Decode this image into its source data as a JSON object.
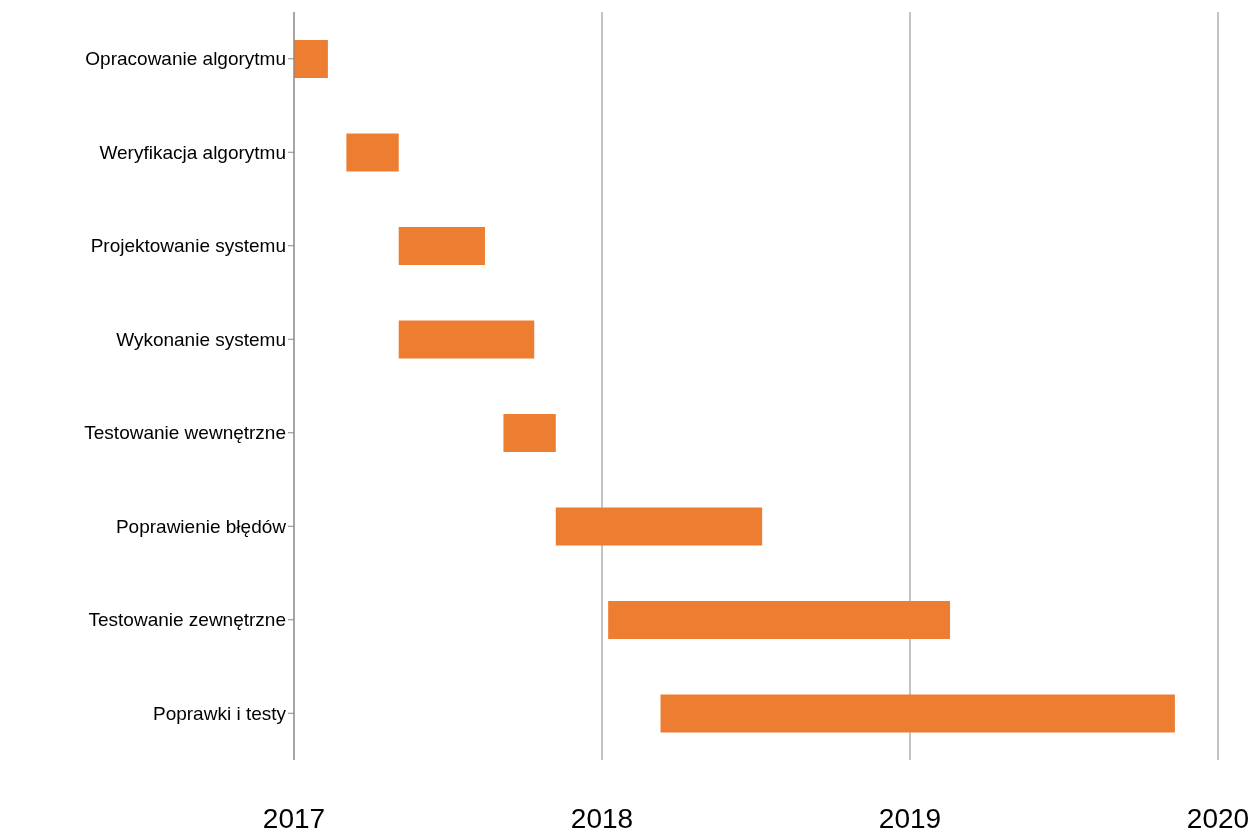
{
  "chart_data": {
    "type": "bar",
    "orientation": "horizontal",
    "categories": [
      "Opracowanie algorytmu",
      "Weryfikacja algorytmu",
      "Projektowanie systemu",
      "Wykonanie systemu",
      "Testowanie wewnętrzne",
      "Poprawienie błędów",
      "Testowanie zewnętrzne",
      "Poprawki i testy"
    ],
    "base": [
      2017,
      2017.17,
      2017.34,
      2017.34,
      2017.68,
      2017.85,
      2018.02,
      2018.19
    ],
    "values": [
      0.11,
      0.17,
      0.28,
      0.44,
      0.17,
      0.67,
      1.11,
      1.67
    ],
    "color": "#ed7d31",
    "xlim": [
      2017,
      2020
    ],
    "xticks": [
      2017,
      2018,
      2019,
      2020
    ],
    "grid": "x"
  }
}
